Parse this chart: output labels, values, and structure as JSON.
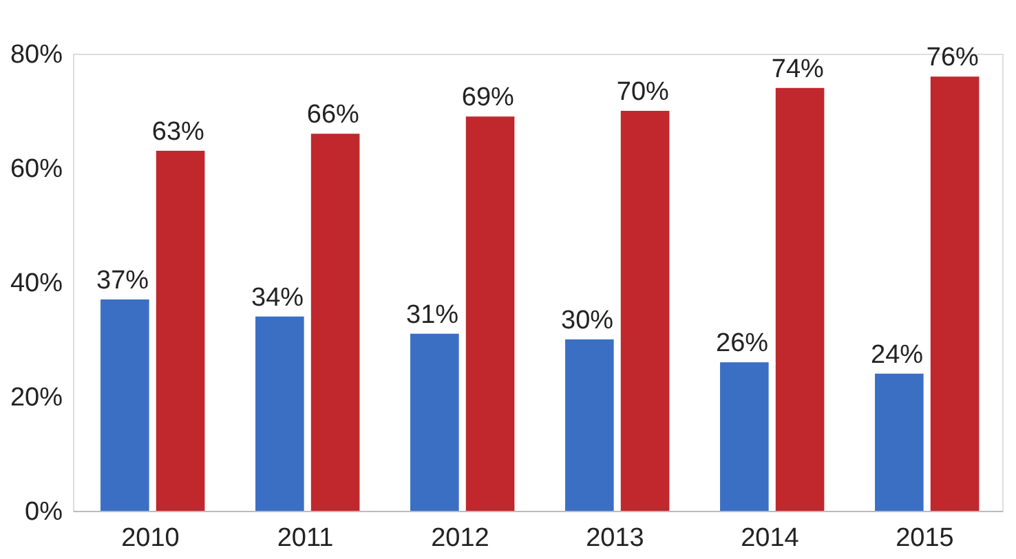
{
  "chart_data": {
    "type": "bar",
    "categories": [
      "2010",
      "2011",
      "2012",
      "2013",
      "2014",
      "2015"
    ],
    "series": [
      {
        "color": "#3a6fc4",
        "values": [
          37,
          34,
          31,
          30,
          26,
          24
        ],
        "value_labels": [
          "37%",
          "34%",
          "31%",
          "30%",
          "26%",
          "24%"
        ]
      },
      {
        "color": "#c0282d",
        "values": [
          63,
          66,
          69,
          70,
          74,
          76
        ],
        "value_labels": [
          "63%",
          "66%",
          "69%",
          "70%",
          "74%",
          "76%"
        ]
      }
    ],
    "ylim": [
      0,
      80
    ],
    "yticks": [
      {
        "value": 0,
        "label": "0%"
      },
      {
        "value": 20,
        "label": "20%"
      },
      {
        "value": 40,
        "label": "40%"
      },
      {
        "value": 60,
        "label": "60%"
      },
      {
        "value": 80,
        "label": "80%"
      }
    ],
    "grid": false
  }
}
